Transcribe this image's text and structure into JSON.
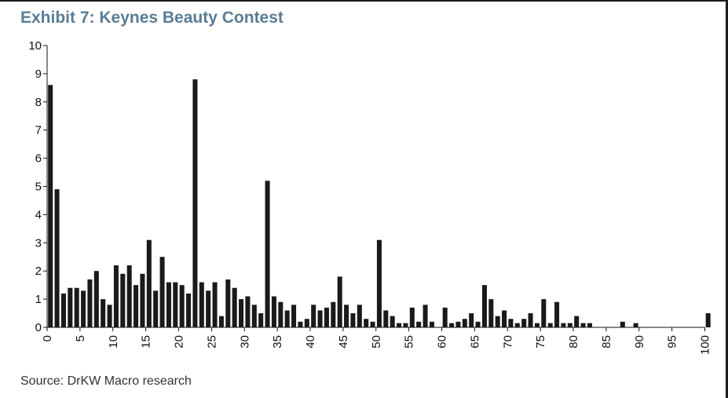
{
  "title": "Exhibit 7: Keynes Beauty Contest",
  "source": "Source: DrKW Macro research",
  "colors": {
    "title": "#5a7d95",
    "bars": "#1a1a1a",
    "axis": "#111111"
  },
  "chart_data": {
    "type": "bar",
    "title": "Exhibit 7: Keynes Beauty Contest",
    "xlabel": "",
    "ylabel": "",
    "xlim": [
      0,
      100
    ],
    "ylim": [
      0,
      10
    ],
    "grid": false,
    "x_ticks": [
      "0",
      "5",
      "10",
      "15",
      "20",
      "25",
      "30",
      "35",
      "40",
      "45",
      "50",
      "55",
      "60",
      "65",
      "70",
      "75",
      "80",
      "85",
      "90",
      "95",
      "100"
    ],
    "y_ticks": [
      "0",
      "1",
      "2",
      "3",
      "4",
      "5",
      "6",
      "7",
      "8",
      "9",
      "10"
    ],
    "x": [
      0,
      1,
      2,
      3,
      4,
      5,
      6,
      7,
      8,
      9,
      10,
      11,
      12,
      13,
      14,
      15,
      16,
      17,
      18,
      19,
      20,
      21,
      22,
      23,
      24,
      25,
      26,
      27,
      28,
      29,
      30,
      31,
      32,
      33,
      34,
      35,
      36,
      37,
      38,
      39,
      40,
      41,
      42,
      43,
      44,
      45,
      46,
      47,
      48,
      49,
      50,
      51,
      52,
      53,
      54,
      55,
      56,
      57,
      58,
      60,
      61,
      62,
      63,
      64,
      65,
      66,
      67,
      68,
      69,
      70,
      71,
      72,
      73,
      74,
      75,
      76,
      77,
      78,
      79,
      80,
      81,
      82,
      87,
      89,
      100
    ],
    "values": [
      8.6,
      4.9,
      1.2,
      1.4,
      1.4,
      1.3,
      1.7,
      2.0,
      1.0,
      0.8,
      2.2,
      1.9,
      2.2,
      1.5,
      1.9,
      3.1,
      1.3,
      2.5,
      1.6,
      1.6,
      1.5,
      1.2,
      8.8,
      1.6,
      1.3,
      1.6,
      0.4,
      1.7,
      1.4,
      1.0,
      1.1,
      0.8,
      0.5,
      5.2,
      1.1,
      0.9,
      0.6,
      0.8,
      0.2,
      0.3,
      0.8,
      0.6,
      0.7,
      0.9,
      1.8,
      0.8,
      0.5,
      0.8,
      0.3,
      0.2,
      3.1,
      0.6,
      0.4,
      0.15,
      0.15,
      0.7,
      0.2,
      0.8,
      0.2,
      0.7,
      0.15,
      0.2,
      0.3,
      0.5,
      0.2,
      1.5,
      1.0,
      0.4,
      0.6,
      0.3,
      0.15,
      0.3,
      0.5,
      0.15,
      1.0,
      0.15,
      0.9,
      0.15,
      0.15,
      0.4,
      0.15,
      0.15,
      0.2,
      0.15,
      0.5
    ]
  }
}
